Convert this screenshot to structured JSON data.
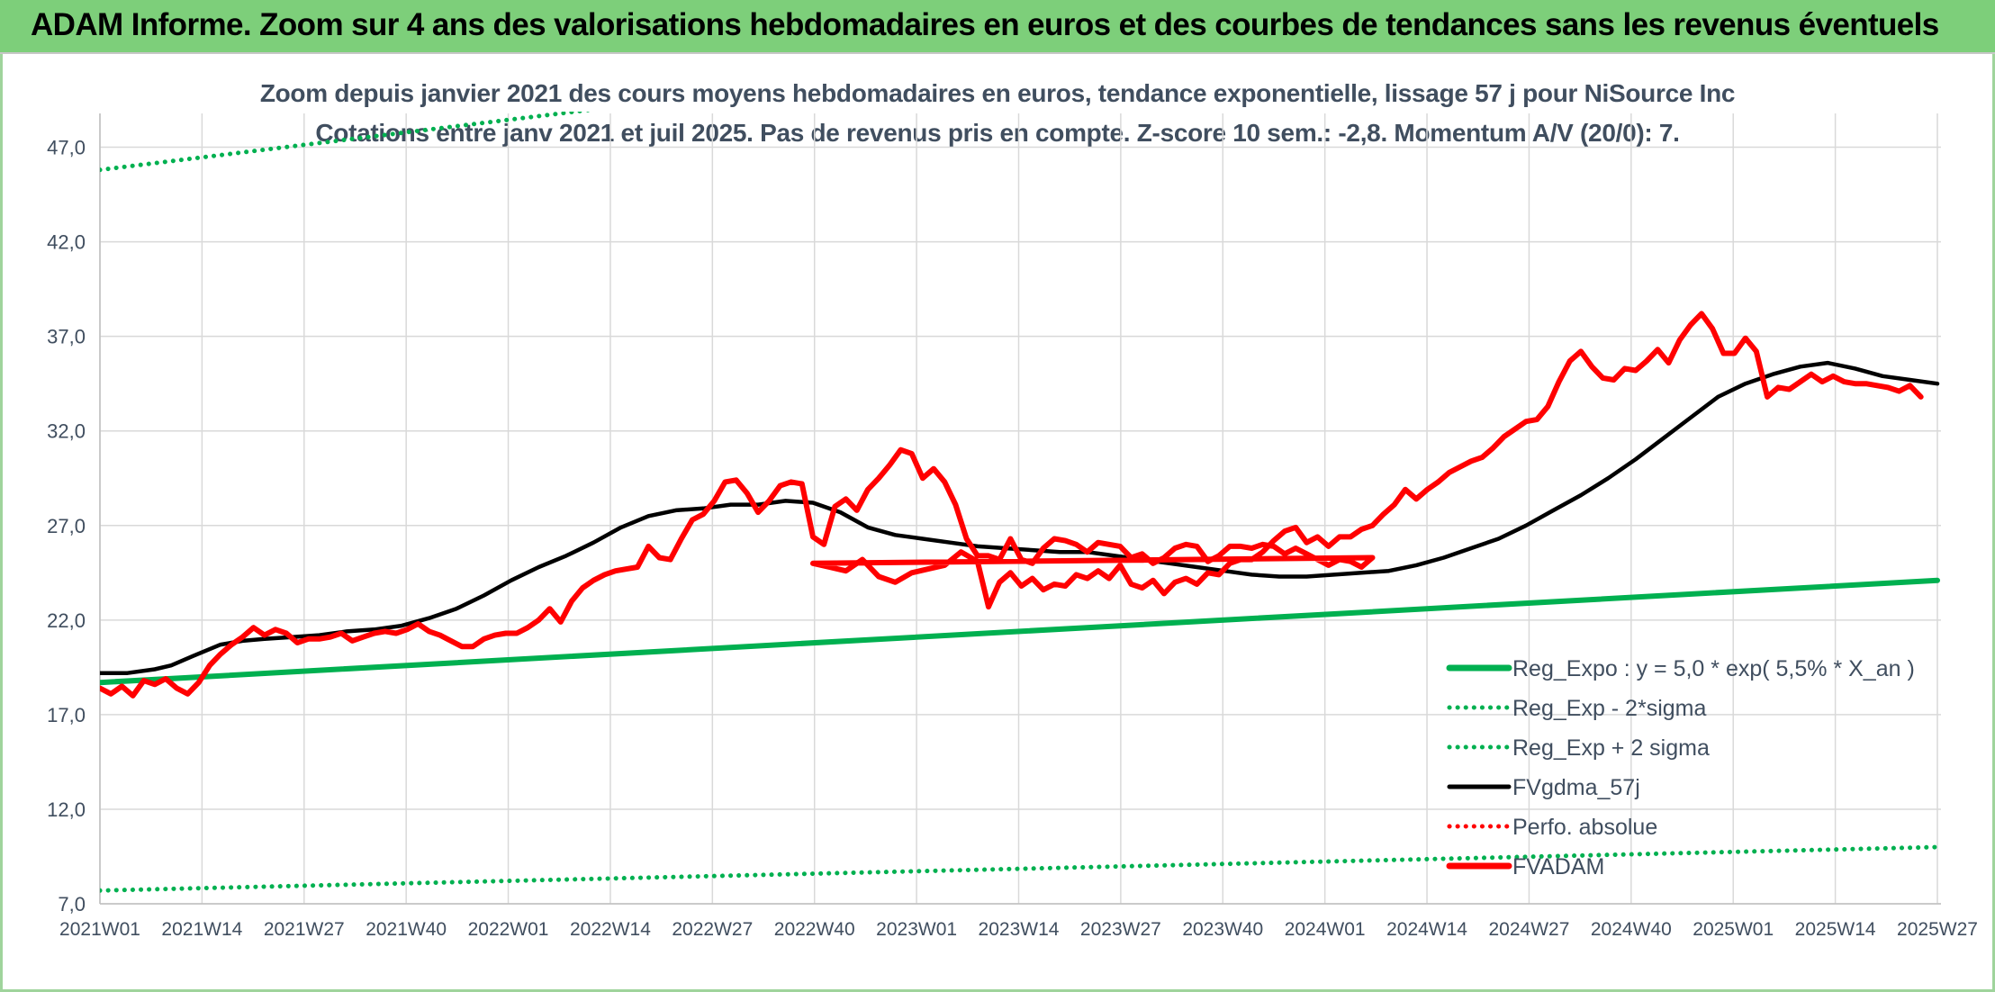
{
  "banner": {
    "title": "ADAM Informe. Zoom sur 4 ans des valorisations hebdomadaires en euros et des courbes de tendances sans les revenus éventuels"
  },
  "colors": {
    "banner_bg": "#7dcf7a",
    "reg_expo": "#00b050",
    "fv_adam": "#ff0000",
    "fvgdma": "#000000",
    "perfo": "#ff0000",
    "text": "#404e5f",
    "grid": "#d9d9d9"
  },
  "chart_data": {
    "type": "line",
    "title": "Zoom depuis janvier 2021 des cours moyens hebdomadaires en euros, tendance exponentielle, lissage 57 j pour NiSource Inc",
    "subtitle": "Cotations entre janv 2021 et juil 2025. Pas de revenus pris en compte. Z-score 10 sem.: -2,8. Momentum A/V (20/0): 7.",
    "xlabel": "",
    "ylabel": "",
    "ylim": [
      7.0,
      48.5
    ],
    "y_ticks": [
      "7,0",
      "12,0",
      "17,0",
      "22,0",
      "27,0",
      "32,0",
      "37,0",
      "42,0",
      "47,0"
    ],
    "y_tick_values": [
      7,
      12,
      17,
      22,
      27,
      32,
      37,
      42,
      47
    ],
    "x_ticks": [
      "2021W01",
      "2021W14",
      "2021W27",
      "2021W40",
      "2022W01",
      "2022W14",
      "2022W27",
      "2022W40",
      "2023W01",
      "2023W14",
      "2023W27",
      "2023W40",
      "2024W01",
      "2024W14",
      "2024W27",
      "2024W40",
      "2025W01",
      "2025W14",
      "2025W27"
    ],
    "x_range_weeks": [
      0,
      235
    ],
    "grid": true,
    "legend_position": "bottom-right",
    "series": [
      {
        "name": "Reg_Expo : y = 5,0 * exp( 5,5% *  X_an )",
        "style": "solid-thick",
        "color": "#00b050",
        "points": [
          [
            0,
            18.7
          ],
          [
            235,
            24.1
          ]
        ]
      },
      {
        "name": "Reg_Exp - 2*sigma",
        "style": "dotted",
        "color": "#00b050",
        "points": [
          [
            0,
            7.7
          ],
          [
            235,
            10.0
          ]
        ]
      },
      {
        "name": "Reg_Exp + 2 sigma",
        "style": "dotted",
        "color": "#00b050",
        "points": [
          [
            0,
            45.8
          ],
          [
            235,
            57.7
          ]
        ]
      },
      {
        "name": "FVgdma_57j",
        "style": "solid",
        "color": "#000000",
        "points": [
          [
            0,
            19.2
          ],
          [
            5,
            19.2
          ],
          [
            10,
            19.4
          ],
          [
            13,
            19.6
          ],
          [
            17,
            20.1
          ],
          [
            22,
            20.7
          ],
          [
            26,
            20.9
          ],
          [
            30,
            21.0
          ],
          [
            35,
            21.1
          ],
          [
            40,
            21.2
          ],
          [
            45,
            21.4
          ],
          [
            50,
            21.5
          ],
          [
            55,
            21.7
          ],
          [
            60,
            22.1
          ],
          [
            65,
            22.6
          ],
          [
            70,
            23.3
          ],
          [
            75,
            24.1
          ],
          [
            80,
            24.8
          ],
          [
            85,
            25.4
          ],
          [
            90,
            26.1
          ],
          [
            95,
            26.9
          ],
          [
            100,
            27.5
          ],
          [
            105,
            27.8
          ],
          [
            110,
            27.9
          ],
          [
            115,
            28.1
          ],
          [
            120,
            28.1
          ],
          [
            125,
            28.3
          ],
          [
            130,
            28.2
          ],
          [
            135,
            27.7
          ],
          [
            140,
            26.9
          ],
          [
            145,
            26.5
          ],
          [
            150,
            26.3
          ],
          [
            155,
            26.1
          ],
          [
            160,
            25.9
          ],
          [
            165,
            25.8
          ],
          [
            170,
            25.7
          ],
          [
            175,
            25.6
          ],
          [
            180,
            25.6
          ],
          [
            185,
            25.4
          ],
          [
            190,
            25.2
          ],
          [
            195,
            25.0
          ],
          [
            200,
            24.8
          ],
          [
            205,
            24.6
          ],
          [
            210,
            24.4
          ],
          [
            215,
            24.3
          ],
          [
            220,
            24.3
          ],
          [
            225,
            24.5
          ],
          [
            230,
            24.6
          ],
          [
            235,
            24.5
          ]
        ]
      },
      {
        "name": "Perfo. absolue",
        "style": "dotted",
        "color": "#ff0000",
        "points": []
      },
      {
        "name": "FVADAM",
        "style": "solid-thick",
        "color": "#ff0000",
        "points": [
          [
            0,
            18.4
          ],
          [
            2,
            18.1
          ],
          [
            4,
            18.5
          ],
          [
            6,
            18.0
          ],
          [
            8,
            18.8
          ],
          [
            10,
            18.6
          ],
          [
            12,
            18.9
          ],
          [
            14,
            18.4
          ],
          [
            16,
            18.1
          ],
          [
            18,
            18.7
          ],
          [
            20,
            19.6
          ],
          [
            22,
            20.2
          ],
          [
            24,
            20.7
          ],
          [
            26,
            21.1
          ],
          [
            28,
            21.6
          ],
          [
            30,
            21.2
          ],
          [
            32,
            21.5
          ],
          [
            34,
            21.3
          ],
          [
            36,
            20.8
          ],
          [
            38,
            21.0
          ],
          [
            40,
            21.0
          ],
          [
            42,
            21.1
          ],
          [
            44,
            21.3
          ],
          [
            46,
            20.9
          ],
          [
            48,
            21.1
          ],
          [
            50,
            21.3
          ],
          [
            52,
            21.4
          ],
          [
            54,
            21.3
          ],
          [
            56,
            21.5
          ],
          [
            58,
            21.8
          ],
          [
            60,
            21.4
          ],
          [
            62,
            21.2
          ],
          [
            64,
            20.9
          ],
          [
            66,
            20.6
          ],
          [
            68,
            20.6
          ],
          [
            70,
            21.0
          ],
          [
            72,
            21.2
          ],
          [
            74,
            21.3
          ],
          [
            76,
            21.3
          ],
          [
            78,
            21.6
          ],
          [
            80,
            22.0
          ],
          [
            82,
            22.6
          ],
          [
            84,
            21.9
          ],
          [
            86,
            23.0
          ],
          [
            88,
            23.7
          ],
          [
            90,
            24.1
          ],
          [
            92,
            24.4
          ],
          [
            94,
            24.6
          ],
          [
            96,
            24.7
          ],
          [
            98,
            24.8
          ],
          [
            100,
            25.9
          ],
          [
            102,
            25.3
          ],
          [
            104,
            25.2
          ],
          [
            106,
            26.3
          ],
          [
            108,
            27.3
          ],
          [
            110,
            27.6
          ],
          [
            112,
            28.3
          ],
          [
            114,
            29.3
          ],
          [
            116,
            29.4
          ],
          [
            118,
            28.7
          ],
          [
            120,
            27.7
          ],
          [
            122,
            28.3
          ],
          [
            124,
            29.1
          ],
          [
            126,
            29.3
          ],
          [
            128,
            29.2
          ],
          [
            130,
            26.4
          ],
          [
            132,
            26.0
          ],
          [
            134,
            28.0
          ],
          [
            136,
            28.4
          ],
          [
            138,
            27.8
          ],
          [
            140,
            28.9
          ],
          [
            142,
            29.5
          ],
          [
            144,
            30.2
          ],
          [
            146,
            31.0
          ],
          [
            148,
            30.8
          ],
          [
            150,
            29.5
          ],
          [
            152,
            30.0
          ],
          [
            154,
            29.3
          ],
          [
            156,
            28.1
          ],
          [
            158,
            26.3
          ],
          [
            160,
            25.4
          ],
          [
            162,
            25.4
          ],
          [
            164,
            25.2
          ],
          [
            166,
            26.3
          ],
          [
            168,
            25.2
          ],
          [
            170,
            25.0
          ],
          [
            172,
            25.8
          ],
          [
            174,
            26.3
          ],
          [
            176,
            26.2
          ],
          [
            178,
            26.0
          ],
          [
            180,
            25.6
          ],
          [
            182,
            26.1
          ],
          [
            184,
            26.0
          ],
          [
            186,
            25.9
          ],
          [
            188,
            25.3
          ],
          [
            190,
            25.5
          ],
          [
            192,
            25.0
          ],
          [
            194,
            25.3
          ],
          [
            196,
            25.8
          ],
          [
            198,
            26.0
          ],
          [
            200,
            25.9
          ],
          [
            202,
            25.1
          ],
          [
            204,
            25.4
          ],
          [
            206,
            25.9
          ],
          [
            208,
            25.9
          ],
          [
            210,
            25.8
          ],
          [
            212,
            26.0
          ],
          [
            214,
            25.9
          ],
          [
            216,
            25.5
          ],
          [
            218,
            25.8
          ],
          [
            220,
            25.5
          ],
          [
            222,
            25.2
          ],
          [
            224,
            24.9
          ],
          [
            226,
            25.2
          ],
          [
            228,
            25.1
          ],
          [
            230,
            24.8
          ],
          [
            232,
            25.3
          ],
          [
            235,
            25.0
          ]
        ]
      }
    ],
    "fvadam_2023_2025": [
      [
        0,
        25.0
      ],
      [
        3,
        24.8
      ],
      [
        6,
        24.6
      ],
      [
        9,
        25.2
      ],
      [
        12,
        24.3
      ],
      [
        15,
        24.0
      ],
      [
        18,
        24.5
      ],
      [
        21,
        24.7
      ],
      [
        24,
        24.9
      ],
      [
        27,
        25.6
      ],
      [
        30,
        25.1
      ],
      [
        32,
        22.7
      ],
      [
        34,
        24.0
      ],
      [
        36,
        24.5
      ],
      [
        38,
        23.8
      ],
      [
        40,
        24.2
      ],
      [
        42,
        23.6
      ],
      [
        44,
        23.9
      ],
      [
        46,
        23.8
      ],
      [
        48,
        24.4
      ],
      [
        50,
        24.2
      ],
      [
        52,
        24.6
      ],
      [
        54,
        24.2
      ],
      [
        56,
        24.9
      ],
      [
        58,
        23.9
      ],
      [
        60,
        23.7
      ],
      [
        62,
        24.1
      ],
      [
        64,
        23.4
      ],
      [
        66,
        24.0
      ],
      [
        68,
        24.2
      ],
      [
        70,
        23.9
      ],
      [
        72,
        24.5
      ],
      [
        74,
        24.4
      ],
      [
        76,
        25.0
      ],
      [
        78,
        25.2
      ],
      [
        80,
        25.2
      ],
      [
        82,
        25.6
      ],
      [
        84,
        26.2
      ],
      [
        86,
        26.7
      ],
      [
        88,
        26.9
      ],
      [
        90,
        26.1
      ],
      [
        92,
        26.4
      ],
      [
        94,
        25.9
      ],
      [
        96,
        26.4
      ],
      [
        98,
        26.4
      ],
      [
        100,
        26.8
      ],
      [
        102,
        27.0
      ],
      [
        104,
        27.6
      ],
      [
        106,
        28.1
      ],
      [
        108,
        28.9
      ],
      [
        110,
        28.4
      ],
      [
        112,
        28.9
      ],
      [
        114,
        29.3
      ],
      [
        116,
        29.8
      ],
      [
        118,
        30.1
      ],
      [
        120,
        30.4
      ],
      [
        122,
        30.6
      ],
      [
        124,
        31.1
      ],
      [
        126,
        31.7
      ],
      [
        128,
        32.1
      ],
      [
        130,
        32.5
      ],
      [
        132,
        32.6
      ],
      [
        134,
        33.3
      ],
      [
        136,
        34.6
      ],
      [
        138,
        35.7
      ],
      [
        140,
        36.2
      ],
      [
        142,
        35.4
      ],
      [
        144,
        34.8
      ],
      [
        146,
        34.7
      ],
      [
        148,
        35.3
      ],
      [
        150,
        35.2
      ],
      [
        152,
        35.7
      ],
      [
        154,
        36.3
      ],
      [
        156,
        35.6
      ],
      [
        158,
        36.8
      ],
      [
        160,
        37.6
      ],
      [
        162,
        38.2
      ],
      [
        164,
        37.4
      ],
      [
        166,
        36.1
      ],
      [
        168,
        36.1
      ],
      [
        170,
        36.9
      ],
      [
        172,
        36.2
      ],
      [
        174,
        33.8
      ],
      [
        176,
        34.3
      ],
      [
        178,
        34.2
      ],
      [
        180,
        34.6
      ],
      [
        182,
        35.0
      ],
      [
        184,
        34.6
      ],
      [
        186,
        34.9
      ],
      [
        188,
        34.6
      ],
      [
        190,
        34.5
      ],
      [
        192,
        34.5
      ],
      [
        194,
        34.4
      ],
      [
        196,
        34.3
      ],
      [
        198,
        34.1
      ],
      [
        200,
        34.4
      ],
      [
        202,
        33.8
      ]
    ]
  },
  "legend": {
    "items": [
      {
        "label": "Reg_Expo : y = 5,0 * exp( 5,5% *  X_an )",
        "style": "solid-thick",
        "color": "#00b050"
      },
      {
        "label": "Reg_Exp - 2*sigma",
        "style": "dotted",
        "color": "#00b050"
      },
      {
        "label": "Reg_Exp + 2 sigma",
        "style": "dotted",
        "color": "#00b050"
      },
      {
        "label": "FVgdma_57j",
        "style": "solid",
        "color": "#000000"
      },
      {
        "label": "Perfo. absolue",
        "style": "dotted",
        "color": "#ff0000"
      },
      {
        "label": "FVADAM",
        "style": "solid-thick",
        "color": "#ff0000"
      }
    ]
  }
}
